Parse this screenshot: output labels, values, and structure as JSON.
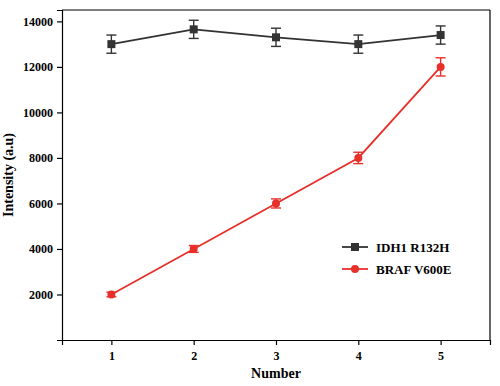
{
  "chart_data": {
    "type": "line",
    "x_label": "Number",
    "y_label": "Intensity (a.u)",
    "x": [
      1,
      2,
      3,
      4,
      5
    ],
    "xlim": [
      0.4,
      5.6
    ],
    "xticks": [
      1,
      2,
      3,
      4,
      5
    ],
    "ylim": [
      0,
      14500
    ],
    "yticks": [
      2000,
      4000,
      6000,
      8000,
      10000,
      12000,
      14000
    ],
    "legend": "lower right",
    "series": [
      {
        "name": "IDH1 R132H",
        "color": "#333333",
        "marker": "square",
        "values": [
          13000,
          13650,
          13300,
          13000,
          13400
        ],
        "errors": [
          400,
          400,
          400,
          400,
          400
        ]
      },
      {
        "name": "BRAF V600E",
        "color": "#e8302a",
        "marker": "circle",
        "values": [
          2000,
          4000,
          6000,
          8000,
          12000
        ],
        "errors": [
          100,
          150,
          200,
          250,
          400
        ]
      }
    ]
  }
}
